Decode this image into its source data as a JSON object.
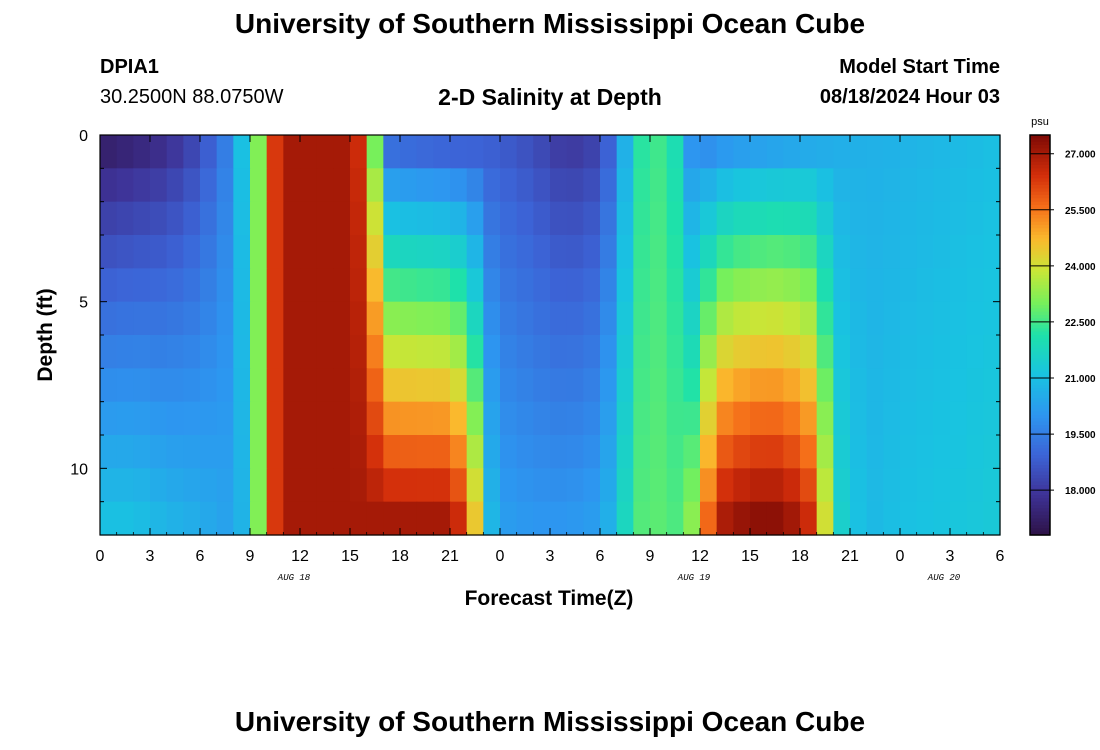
{
  "page": {
    "title": "University of Southern Mississippi Ocean Cube",
    "station_id": "DPIA1",
    "coords": "30.2500N  88.0750W",
    "plot_title": "2-D Salinity at Depth",
    "model_start_label": "Model Start Time",
    "model_start_value": "08/18/2024 Hour 03",
    "footer_title": "University of Southern Mississippi Ocean Cube"
  },
  "chart_data": {
    "type": "heatmap",
    "title": "2-D Salinity at Depth",
    "xlabel": "Forecast Time(Z)",
    "ylabel": "Depth (ft)",
    "x_range_hours": [
      0,
      54
    ],
    "y_range_ft": [
      0,
      12
    ],
    "x_ticks": [
      {
        "h": 0,
        "label": "0"
      },
      {
        "h": 3,
        "label": "3"
      },
      {
        "h": 6,
        "label": "6"
      },
      {
        "h": 9,
        "label": "9"
      },
      {
        "h": 12,
        "label": "12"
      },
      {
        "h": 15,
        "label": "15"
      },
      {
        "h": 18,
        "label": "18"
      },
      {
        "h": 21,
        "label": "21"
      },
      {
        "h": 24,
        "label": "0"
      },
      {
        "h": 27,
        "label": "3"
      },
      {
        "h": 30,
        "label": "6"
      },
      {
        "h": 33,
        "label": "9"
      },
      {
        "h": 36,
        "label": "12"
      },
      {
        "h": 39,
        "label": "15"
      },
      {
        "h": 42,
        "label": "18"
      },
      {
        "h": 45,
        "label": "21"
      },
      {
        "h": 48,
        "label": "0"
      },
      {
        "h": 51,
        "label": "3"
      },
      {
        "h": 54,
        "label": "6"
      }
    ],
    "date_labels": [
      {
        "h": 12,
        "label": "AUG 18"
      },
      {
        "h": 36,
        "label": "AUG 19"
      },
      {
        "h": 51,
        "label": "AUG 20"
      }
    ],
    "y_ticks": [
      {
        "ft": 0,
        "label": "0"
      },
      {
        "ft": 5,
        "label": "5"
      },
      {
        "ft": 10,
        "label": "10"
      }
    ],
    "colorbar": {
      "units": "psu",
      "min": 16.8,
      "max": 27.5,
      "ticks": [
        {
          "v": 27.0,
          "label": "27.000"
        },
        {
          "v": 25.5,
          "label": "25.500"
        },
        {
          "v": 24.0,
          "label": "24.000"
        },
        {
          "v": 22.5,
          "label": "22.500"
        },
        {
          "v": 21.0,
          "label": "21.000"
        },
        {
          "v": 19.5,
          "label": "19.500"
        },
        {
          "v": 18.0,
          "label": "18.000"
        }
      ]
    },
    "model": {
      "n_time_steps": 54,
      "n_depth_levels": 12,
      "surface_profile": [
        [
          0,
          17.3
        ],
        [
          2,
          17.5
        ],
        [
          4,
          17.8
        ],
        [
          6,
          18.5
        ],
        [
          7.5,
          19.5
        ],
        [
          8.5,
          21.0
        ],
        [
          9.3,
          22.5
        ],
        [
          9.8,
          24.0
        ],
        [
          10.3,
          26.0
        ],
        [
          11,
          27.0
        ],
        [
          15,
          27.0
        ],
        [
          16,
          26.0
        ],
        [
          16.5,
          23.0
        ],
        [
          17,
          20.0
        ],
        [
          17.5,
          19.2
        ],
        [
          20,
          19.0
        ],
        [
          23,
          18.9
        ],
        [
          24,
          18.8
        ],
        [
          26,
          18.5
        ],
        [
          28,
          18.0
        ],
        [
          30,
          18.3
        ],
        [
          31,
          19.5
        ],
        [
          32,
          21.8
        ],
        [
          33,
          22.7
        ],
        [
          34.5,
          22.0
        ],
        [
          35,
          20.2
        ],
        [
          36,
          19.8
        ],
        [
          38,
          20.2
        ],
        [
          41,
          20.4
        ],
        [
          44,
          20.6
        ],
        [
          48,
          20.7
        ],
        [
          54,
          21.0
        ]
      ],
      "bottom_profile": [
        [
          0,
          21.0
        ],
        [
          2,
          21.0
        ],
        [
          4,
          20.7
        ],
        [
          6,
          20.5
        ],
        [
          7.5,
          20.3
        ],
        [
          8.5,
          20.7
        ],
        [
          9.3,
          22.5
        ],
        [
          9.8,
          24.0
        ],
        [
          10.3,
          26.0
        ],
        [
          11,
          27.0
        ],
        [
          21,
          27.0
        ],
        [
          22,
          26.0
        ],
        [
          22.8,
          23.5
        ],
        [
          23.3,
          21.0
        ],
        [
          24,
          20.2
        ],
        [
          26,
          20.0
        ],
        [
          28,
          20.0
        ],
        [
          30,
          20.2
        ],
        [
          31,
          21.0
        ],
        [
          32,
          22.5
        ],
        [
          33,
          22.8
        ],
        [
          34.5,
          22.6
        ],
        [
          35.5,
          23.2
        ],
        [
          36,
          24.5
        ],
        [
          37,
          26.8
        ],
        [
          39,
          27.3
        ],
        [
          41,
          27.3
        ],
        [
          42.5,
          26.5
        ],
        [
          43.5,
          24.0
        ],
        [
          44.5,
          21.5
        ],
        [
          46,
          20.8
        ],
        [
          48,
          21.0
        ],
        [
          54,
          21.3
        ]
      ]
    }
  }
}
